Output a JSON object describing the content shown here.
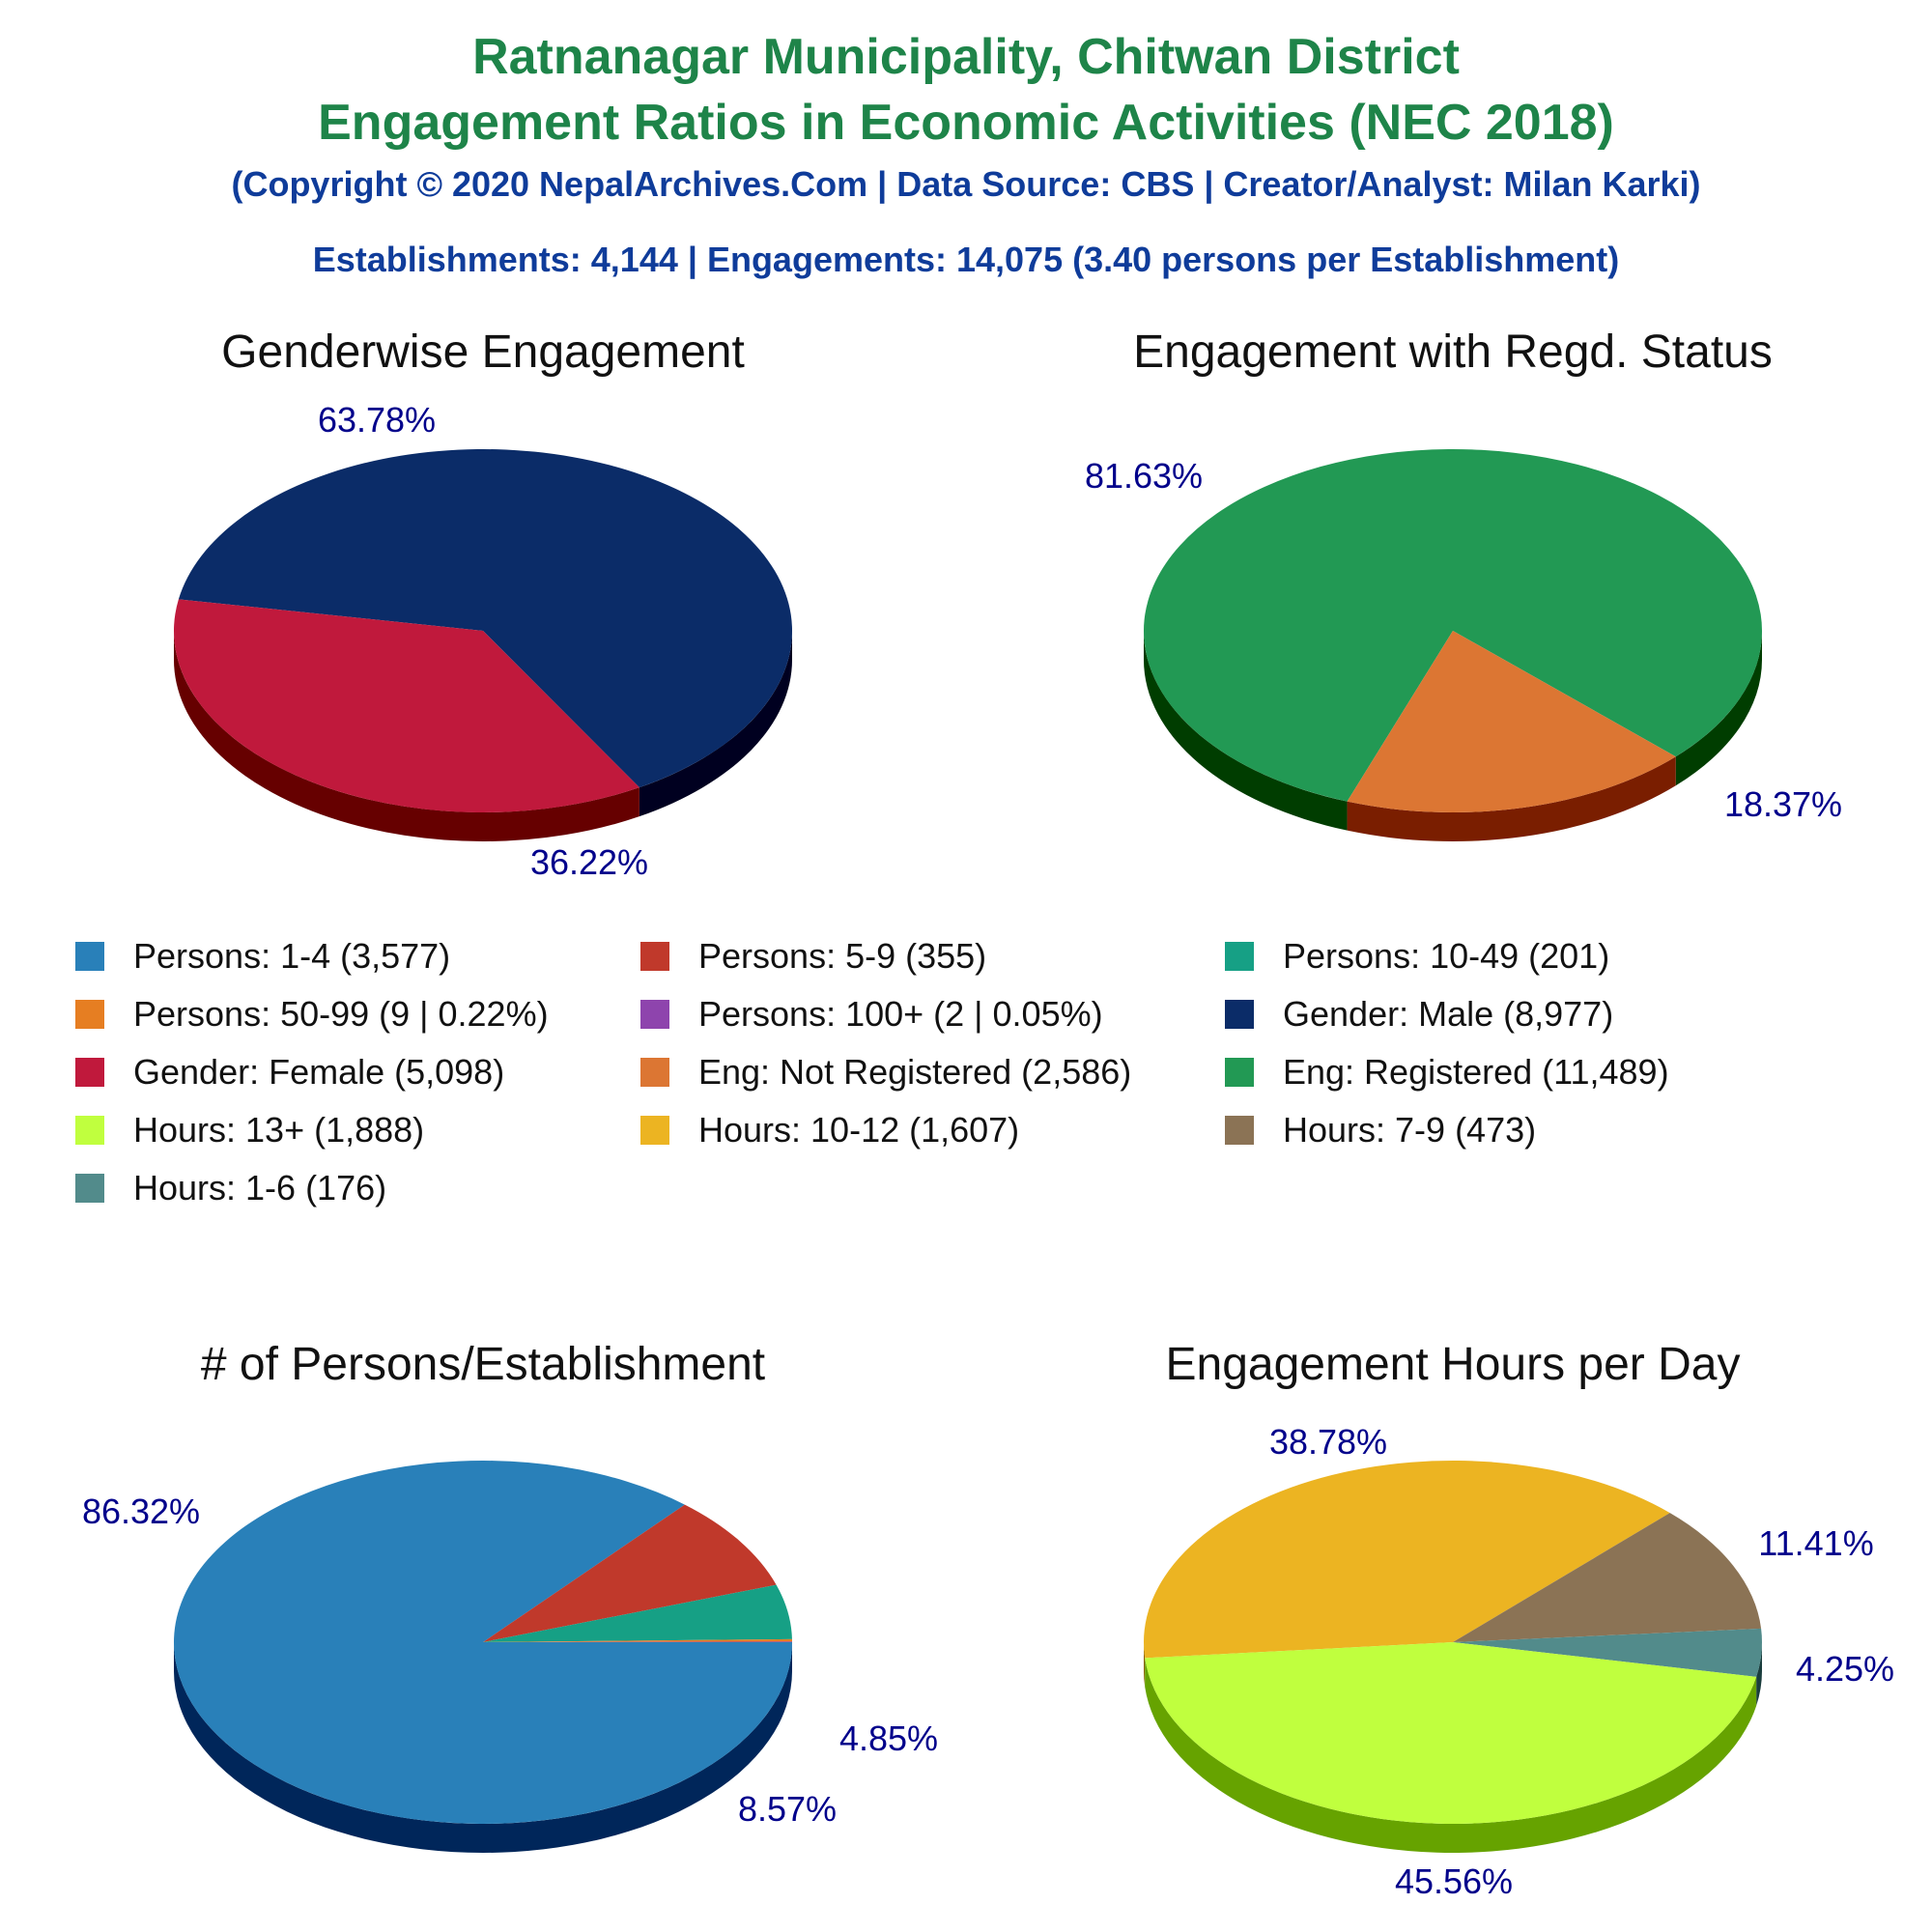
{
  "header": {
    "title_line1": "Ratnanagar Municipality, Chitwan District",
    "title_line2": "Engagement Ratios in Economic Activities (NEC 2018)",
    "copyright": "(Copyright © 2020 NepalArchives.Com | Data Source: CBS | Creator/Analyst: Milan Karki)",
    "summary": "Establishments: 4,144 | Engagements: 14,075 (3.40 persons per Establishment)"
  },
  "colors": {
    "title": "#1e8449",
    "subtitle": "#0f3c9a",
    "pct_label": "#00008b"
  },
  "legend": [
    {
      "label": "Persons: 1-4 (3,577)",
      "color": "#2980b9"
    },
    {
      "label": "Persons: 5-9 (355)",
      "color": "#c0392b"
    },
    {
      "label": "Persons: 10-49 (201)",
      "color": "#16a085"
    },
    {
      "label": "Persons: 50-99 (9 | 0.22%)",
      "color": "#e67e22"
    },
    {
      "label": "Persons: 100+ (2 | 0.05%)",
      "color": "#8e44ad"
    },
    {
      "label": "Gender: Male (8,977)",
      "color": "#0b2c68"
    },
    {
      "label": "Gender: Female (5,098)",
      "color": "#c0193c"
    },
    {
      "label": "Eng: Not Registered (2,586)",
      "color": "#dc7633"
    },
    {
      "label": "Eng: Registered (11,489)",
      "color": "#229954"
    },
    {
      "label": "Hours: 13+ (1,888)",
      "color": "#c0ff3e"
    },
    {
      "label": "Hours: 10-12 (1,607)",
      "color": "#ecb422"
    },
    {
      "label": "Hours: 7-9 (473)",
      "color": "#8b7355"
    },
    {
      "label": "Hours: 1-6 (176)",
      "color": "#528b8b"
    }
  ],
  "chart_data": [
    {
      "type": "pie",
      "title": "Genderwise Engagement",
      "slices": [
        {
          "label": "Gender: Male",
          "value": 8977,
          "pct_text": "63.78%",
          "color": "#0b2c68",
          "side": "#000020"
        },
        {
          "label": "Gender: Female",
          "value": 5098,
          "pct_text": "36.22%",
          "color": "#c0193c",
          "side": "#660000"
        }
      ]
    },
    {
      "type": "pie",
      "title": "Engagement with Regd. Status",
      "slices": [
        {
          "label": "Eng: Registered",
          "value": 11489,
          "pct_text": "81.63%",
          "color": "#229954",
          "side": "#003d00"
        },
        {
          "label": "Eng: Not Registered",
          "value": 2586,
          "pct_text": "18.37%",
          "color": "#dc7633",
          "side": "#7a1e00"
        }
      ]
    },
    {
      "type": "pie",
      "title": "# of Persons/Establishment",
      "slices": [
        {
          "label": "Persons: 1-4",
          "value": 3577,
          "pct_text": "86.32%",
          "color": "#2980b9",
          "side": "#00265a"
        },
        {
          "label": "Persons: 5-9",
          "value": 355,
          "pct_text": "8.57%",
          "color": "#c0392b",
          "side": "#660000"
        },
        {
          "label": "Persons: 10-49",
          "value": 201,
          "pct_text": "4.85%",
          "color": "#16a085",
          "side": "#004d33"
        },
        {
          "label": "Persons: 50-99",
          "value": 9,
          "pct_text": "",
          "color": "#e67e22",
          "side": "#803300"
        },
        {
          "label": "Persons: 100+",
          "value": 2,
          "pct_text": "",
          "color": "#8e44ad",
          "side": "#3d0055"
        }
      ]
    },
    {
      "type": "pie",
      "title": "Engagement Hours per Day",
      "slices": [
        {
          "label": "Hours: 10-12",
          "value": 1607,
          "pct_text": "38.78%",
          "color": "#ecb422",
          "side": "#8a6200"
        },
        {
          "label": "Hours: 7-9",
          "value": 473,
          "pct_text": "11.41%",
          "color": "#8b7355",
          "side": "#3d2a10"
        },
        {
          "label": "Hours: 1-6",
          "value": 176,
          "pct_text": "4.25%",
          "color": "#528b8b",
          "side": "#1a3d3d"
        },
        {
          "label": "Hours: 13+",
          "value": 1888,
          "pct_text": "45.56%",
          "color": "#c0ff3e",
          "side": "#66a300"
        }
      ]
    }
  ]
}
